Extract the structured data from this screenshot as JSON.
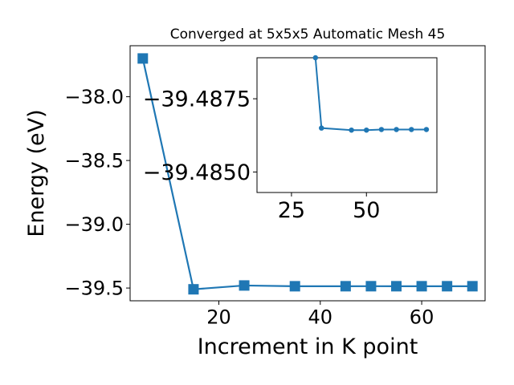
{
  "chart_data": [
    {
      "type": "line",
      "title": "Converged at 5x5x5 Automatic Mesh 45",
      "xlabel": "Increment in K point",
      "ylabel": "Energy (eV)",
      "xlim": [
        2.5,
        72.5
      ],
      "ylim": [
        -39.6,
        -37.6
      ],
      "xticks": [
        20,
        40,
        60
      ],
      "yticks": [
        -38.0,
        -38.5,
        -39.0,
        -39.5
      ],
      "ytick_labels": [
        "−38.0",
        "−38.5",
        "−39.0",
        "−39.5"
      ],
      "marker": "square",
      "color": "#1f77b4",
      "x": [
        5,
        15,
        25,
        35,
        45,
        50,
        55,
        60,
        65,
        70
      ],
      "y": [
        -37.7,
        -39.51,
        -39.48,
        -39.486,
        -39.4858,
        -39.4857,
        -39.4858,
        -39.4858,
        -39.4858,
        -39.4858
      ]
    },
    {
      "type": "line",
      "title": "",
      "xlabel": "",
      "ylabel": "",
      "xlim": [
        13.5,
        73.5
      ],
      "ylim": [
        -39.4843,
        -39.4889
      ],
      "xticks": [
        25,
        50
      ],
      "yticks": [
        -39.4875,
        -39.485
      ],
      "ytick_labels": [
        "−39.4875",
        "−39.4850"
      ],
      "marker": "circle",
      "color": "#1f77b4",
      "x": [
        33,
        35,
        45,
        50,
        55,
        60,
        65,
        70
      ],
      "y": [
        -39.4889,
        -39.4865,
        -39.48643,
        -39.48643,
        -39.48645,
        -39.48645,
        -39.48645,
        -39.48645
      ]
    }
  ]
}
